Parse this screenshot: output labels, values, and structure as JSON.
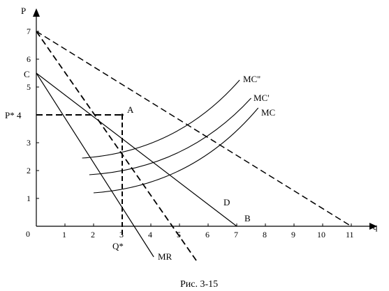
{
  "figure": {
    "caption": "Рис. 3-15",
    "x_axis_label": "q",
    "y_axis_label": "P",
    "origin_label": "0",
    "x_range": [
      0,
      11
    ],
    "y_range": [
      0,
      7
    ],
    "x_ticks": [
      "1",
      "2",
      "3",
      "4",
      "5",
      "6",
      "7",
      "8",
      "9",
      "10",
      "11"
    ],
    "y_ticks": [
      "1",
      "2",
      "3",
      "4",
      "5",
      "6",
      "7"
    ],
    "points": {
      "C": {
        "label": "C",
        "x": 0,
        "y": 5.5
      },
      "A": {
        "label": "A",
        "x": 3,
        "y": 4
      },
      "B": {
        "label": "B",
        "x": 7,
        "y": 0
      },
      "p_star": {
        "label": "P* 4",
        "y": 4
      },
      "q_star": {
        "label": "Q*",
        "x": 3
      }
    },
    "curves": {
      "D": {
        "label": "D"
      },
      "MR": {
        "label": "MR"
      },
      "MC": {
        "label": "MC"
      },
      "MC1": {
        "label": "MC'"
      },
      "MC2": {
        "label": "MC''"
      }
    }
  }
}
